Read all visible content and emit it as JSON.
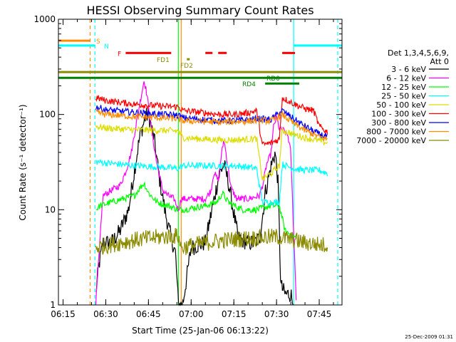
{
  "chart_data": {
    "type": "line",
    "title": "HESSI Observing Summary Count Rates",
    "xlabel": "Start Time (25-Jan-06 06:13:22)",
    "ylabel": "Count Rate (s⁻¹ detector⁻¹)",
    "x_tick_labels": [
      "06:15",
      "06:30",
      "06:45",
      "07:00",
      "07:15",
      "07:30",
      "07:45"
    ],
    "x_ticks_min": [
      15,
      30,
      45,
      60,
      75,
      90,
      105
    ],
    "xlim_min": [
      13.37,
      113
    ],
    "y_scale": "log",
    "ylim": [
      1,
      1000
    ],
    "y_tick_labels": [
      "1",
      "10",
      "100",
      "1000"
    ],
    "legend_title": [
      "Det 1,3,4,5,6,9,",
      "Att 0"
    ],
    "legend_position": "right",
    "date_stamp": "25-Dec-2009 01:31",
    "series": [
      {
        "name": "3 - 6 keV",
        "color": "#000000",
        "points": [
          [
            26.5,
            1.3
          ],
          [
            27.5,
            2.5
          ],
          [
            29,
            4.5
          ],
          [
            32,
            4.5
          ],
          [
            35,
            6
          ],
          [
            38,
            10
          ],
          [
            40,
            25
          ],
          [
            42,
            60
          ],
          [
            44,
            95
          ],
          [
            45,
            100
          ],
          [
            47,
            55
          ],
          [
            49,
            20
          ],
          [
            51,
            9
          ],
          [
            53,
            5
          ],
          [
            54.5,
            3.5
          ],
          [
            55.5,
            1
          ],
          [
            57,
            1
          ],
          [
            60,
            4
          ],
          [
            65,
            4.5
          ],
          [
            67,
            9
          ],
          [
            68.5,
            15
          ],
          [
            70,
            24
          ],
          [
            71.5,
            30
          ],
          [
            73,
            20
          ],
          [
            75,
            9
          ],
          [
            76.5,
            5
          ],
          [
            80,
            4.5
          ],
          [
            82,
            4.5
          ],
          [
            84,
            5
          ],
          [
            85,
            8
          ],
          [
            86,
            15
          ],
          [
            88,
            28
          ],
          [
            89.5,
            40
          ],
          [
            90.5,
            20
          ],
          [
            91.5,
            1.6
          ],
          [
            93,
            1.3
          ],
          [
            95,
            1.3
          ],
          [
            96,
            1
          ]
        ]
      },
      {
        "name": "6 - 12 keV",
        "color": "#ff00ff",
        "points": [
          [
            26.5,
            1
          ],
          [
            29,
            14
          ],
          [
            32,
            16
          ],
          [
            35,
            18
          ],
          [
            37,
            25
          ],
          [
            39,
            40
          ],
          [
            41,
            90
          ],
          [
            42.5,
            160
          ],
          [
            43.5,
            230
          ],
          [
            44.5,
            160
          ],
          [
            46,
            70
          ],
          [
            48,
            30
          ],
          [
            50,
            16
          ],
          [
            52,
            14
          ],
          [
            54,
            13
          ],
          [
            55.5,
            10
          ],
          [
            56.5,
            13
          ],
          [
            60,
            13
          ],
          [
            65,
            13
          ],
          [
            67,
            16
          ],
          [
            68,
            25
          ],
          [
            69.5,
            20
          ],
          [
            70.5,
            35
          ],
          [
            71.5,
            55
          ],
          [
            72.5,
            35
          ],
          [
            74,
            17
          ],
          [
            76,
            13
          ],
          [
            80,
            13
          ],
          [
            84,
            14
          ],
          [
            85.5,
            20
          ],
          [
            86.5,
            30
          ],
          [
            88,
            38
          ],
          [
            89,
            75
          ],
          [
            90,
            95
          ],
          [
            91,
            70
          ],
          [
            92,
            70
          ],
          [
            94,
            60
          ],
          [
            95,
            40
          ],
          [
            96,
            6
          ],
          [
            97,
            1
          ]
        ]
      },
      {
        "name": "12 - 25 keV",
        "color": "#00ff00",
        "points": [
          [
            26.5,
            10
          ],
          [
            28,
            11
          ],
          [
            32,
            12
          ],
          [
            36,
            13
          ],
          [
            40,
            14
          ],
          [
            42,
            17
          ],
          [
            43.5,
            19
          ],
          [
            45,
            15
          ],
          [
            48,
            12
          ],
          [
            52,
            11
          ],
          [
            55.5,
            10
          ],
          [
            57,
            10
          ],
          [
            65,
            11
          ],
          [
            69,
            12
          ],
          [
            71,
            15
          ],
          [
            73,
            12
          ],
          [
            78,
            10
          ],
          [
            83,
            10
          ],
          [
            88,
            11
          ],
          [
            91,
            11
          ],
          [
            93,
            6
          ],
          [
            97,
            5
          ]
        ]
      },
      {
        "name": "25 - 50 keV",
        "color": "#00ffff",
        "points": [
          [
            26.5,
            32
          ],
          [
            30,
            31
          ],
          [
            40,
            29
          ],
          [
            50,
            28
          ],
          [
            55.5,
            27
          ],
          [
            57,
            29
          ],
          [
            65,
            29
          ],
          [
            70,
            29
          ],
          [
            75,
            29
          ],
          [
            80,
            28
          ],
          [
            83,
            27
          ],
          [
            85,
            12
          ],
          [
            88,
            12
          ],
          [
            91,
            12
          ],
          [
            92,
            30
          ],
          [
            96,
            27
          ],
          [
            100,
            26
          ],
          [
            105,
            26
          ],
          [
            108,
            24
          ]
        ]
      },
      {
        "name": "50 - 100 keV",
        "color": "#dddd00",
        "points": [
          [
            26.5,
            75
          ],
          [
            30,
            72
          ],
          [
            40,
            69
          ],
          [
            50,
            68
          ],
          [
            55.5,
            67
          ],
          [
            57,
            57
          ],
          [
            65,
            55
          ],
          [
            70,
            54
          ],
          [
            75,
            54
          ],
          [
            80,
            55
          ],
          [
            83,
            56
          ],
          [
            85,
            21
          ],
          [
            88,
            24
          ],
          [
            91,
            29
          ],
          [
            92,
            68
          ],
          [
            96,
            62
          ],
          [
            100,
            57
          ],
          [
            105,
            53
          ],
          [
            108,
            50
          ]
        ]
      },
      {
        "name": "100 - 300 keV",
        "color": "#ff0000",
        "points": [
          [
            26.5,
            150
          ],
          [
            30,
            140
          ],
          [
            40,
            128
          ],
          [
            50,
            122
          ],
          [
            55.5,
            120
          ],
          [
            57,
            110
          ],
          [
            65,
            104
          ],
          [
            70,
            100
          ],
          [
            75,
            100
          ],
          [
            80,
            104
          ],
          [
            83,
            110
          ],
          [
            85,
            48
          ],
          [
            88,
            50
          ],
          [
            91,
            55
          ],
          [
            92,
            150
          ],
          [
            96,
            130
          ],
          [
            100,
            115
          ],
          [
            103,
            110
          ],
          [
            105,
            75
          ],
          [
            108,
            65
          ]
        ]
      },
      {
        "name": "300 - 800 keV",
        "color": "#0000ff",
        "points": [
          [
            26.5,
            120
          ],
          [
            30,
            112
          ],
          [
            40,
            105
          ],
          [
            50,
            100
          ],
          [
            55.5,
            98
          ],
          [
            57,
            92
          ],
          [
            65,
            88
          ],
          [
            70,
            86
          ],
          [
            75,
            86
          ],
          [
            80,
            88
          ],
          [
            84,
            90
          ],
          [
            88,
            88
          ],
          [
            92,
            110
          ],
          [
            96,
            90
          ],
          [
            100,
            75
          ],
          [
            105,
            62
          ],
          [
            108,
            58
          ]
        ]
      },
      {
        "name": "800 - 7000 keV",
        "color": "#ff8c00",
        "points": [
          [
            26.5,
            105
          ],
          [
            30,
            100
          ],
          [
            40,
            95
          ],
          [
            50,
            92
          ],
          [
            55.5,
            90
          ],
          [
            57,
            86
          ],
          [
            65,
            84
          ],
          [
            70,
            83
          ],
          [
            75,
            84
          ],
          [
            80,
            85
          ],
          [
            84,
            87
          ],
          [
            88,
            85
          ],
          [
            92,
            100
          ],
          [
            96,
            80
          ],
          [
            100,
            68
          ],
          [
            105,
            58
          ],
          [
            108,
            55
          ]
        ]
      },
      {
        "name": "7000 - 20000 keV",
        "color": "#8b8b00",
        "points": [
          [
            26.5,
            4
          ],
          [
            30,
            4.2
          ],
          [
            35,
            4.5
          ],
          [
            40,
            4.8
          ],
          [
            45,
            5
          ],
          [
            50,
            5.2
          ],
          [
            55.5,
            5.3
          ],
          [
            56.5,
            4
          ],
          [
            60,
            4.2
          ],
          [
            65,
            4.5
          ],
          [
            70,
            4.7
          ],
          [
            75,
            4.9
          ],
          [
            80,
            5
          ],
          [
            85,
            5.1
          ],
          [
            90,
            5.2
          ],
          [
            93,
            5
          ],
          [
            96,
            4.8
          ],
          [
            100,
            4.5
          ],
          [
            105,
            4.3
          ],
          [
            108,
            4.2
          ]
        ]
      }
    ],
    "flag_bars": [
      {
        "label": "",
        "color": "#ff8c00",
        "segments": [
          [
            13.5,
            24.5
          ]
        ],
        "y_frac": 0.075
      },
      {
        "label": "S",
        "color": "#ff8c00",
        "segments": [],
        "y_frac": 0.075
      },
      {
        "label": "",
        "color": "#00ffff",
        "segments": [
          [
            13.5,
            26.2
          ],
          [
            96,
            113
          ]
        ],
        "y_frac": 0.092
      },
      {
        "label": "N",
        "color": "#00ffff",
        "segments": [],
        "y_frac": 0.092
      },
      {
        "label": "F",
        "color": "#ff0000",
        "segments": [
          [
            37,
            53
          ],
          [
            65,
            67.5
          ],
          [
            69.5,
            72.5
          ],
          [
            92,
            96.5
          ]
        ],
        "y_frac": 0.118
      },
      {
        "label": "FD1",
        "color": "#8b8b00",
        "segments": [
          [
            58.5,
            59.5
          ]
        ],
        "y_frac": 0.14
      },
      {
        "label": "FD2",
        "color": "#8b8b00",
        "segments": [],
        "y_frac": 0.16
      },
      {
        "label": "",
        "color": "#8b8b00",
        "segments": [
          [
            13.5,
            113
          ]
        ],
        "y_frac": 0.185
      },
      {
        "label": "RD0",
        "color": "#008000",
        "segments": [
          [
            13.5,
            113
          ]
        ],
        "y_frac": 0.205
      },
      {
        "label": "RD4",
        "color": "#008000",
        "segments": [
          [
            86,
            98
          ]
        ],
        "y_frac": 0.225
      }
    ],
    "vertical_markers": [
      {
        "x": 24.5,
        "color": "#ff8c00",
        "style": "dashed"
      },
      {
        "x": 26.2,
        "color": "#00ffff",
        "style": "dashed"
      },
      {
        "x": 55.5,
        "color": "#00ff00",
        "style": "solid"
      },
      {
        "x": 56.5,
        "color": "#ff8c00",
        "style": "solid"
      },
      {
        "x": 96,
        "color": "#00ffff",
        "style": "solid"
      },
      {
        "x": 111.5,
        "color": "#00ffff",
        "style": "dashed"
      }
    ]
  }
}
